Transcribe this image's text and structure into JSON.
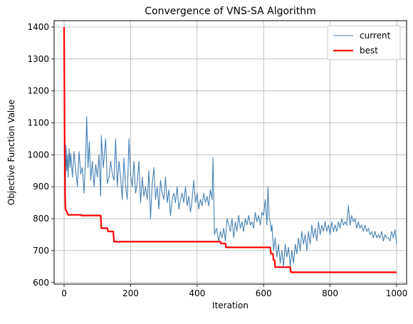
{
  "chart_data": {
    "type": "line",
    "title": "Convergence of VNS-SA Algorithm",
    "xlabel": "Iteration",
    "ylabel": "Objective Function Value",
    "xlim": [
      -30,
      1030
    ],
    "ylim": [
      595,
      1420
    ],
    "xticks": [
      0,
      200,
      400,
      600,
      800,
      1000
    ],
    "yticks": [
      600,
      700,
      800,
      900,
      1000,
      1100,
      1200,
      1300,
      1400
    ],
    "grid": true,
    "legend_position": "top-right",
    "series": [
      {
        "name": "current",
        "color": "#4682b4",
        "linewidth": 1,
        "style": "noisy",
        "points": [
          [
            0,
            1400
          ],
          [
            1,
            1250
          ],
          [
            2,
            1100
          ],
          [
            3,
            1000
          ],
          [
            4,
            920
          ],
          [
            6,
            1030
          ],
          [
            8,
            950
          ],
          [
            10,
            1000
          ],
          [
            12,
            930
          ],
          [
            15,
            1020
          ],
          [
            18,
            960
          ],
          [
            20,
            1005
          ],
          [
            25,
            930
          ],
          [
            30,
            1010
          ],
          [
            35,
            950
          ],
          [
            40,
            900
          ],
          [
            45,
            1010
          ],
          [
            50,
            940
          ],
          [
            55,
            960
          ],
          [
            60,
            880
          ],
          [
            65,
            1000
          ],
          [
            68,
            1120
          ],
          [
            72,
            960
          ],
          [
            76,
            1040
          ],
          [
            80,
            920
          ],
          [
            85,
            980
          ],
          [
            90,
            900
          ],
          [
            95,
            970
          ],
          [
            100,
            930
          ],
          [
            105,
            1000
          ],
          [
            110,
            870
          ],
          [
            112,
            1060
          ],
          [
            118,
            960
          ],
          [
            125,
            1050
          ],
          [
            130,
            910
          ],
          [
            135,
            930
          ],
          [
            140,
            980
          ],
          [
            145,
            940
          ],
          [
            150,
            920
          ],
          [
            155,
            1050
          ],
          [
            160,
            900
          ],
          [
            165,
            980
          ],
          [
            170,
            930
          ],
          [
            175,
            860
          ],
          [
            180,
            990
          ],
          [
            185,
            900
          ],
          [
            190,
            860
          ],
          [
            195,
            1050
          ],
          [
            200,
            940
          ],
          [
            205,
            900
          ],
          [
            210,
            980
          ],
          [
            215,
            880
          ],
          [
            220,
            910
          ],
          [
            225,
            980
          ],
          [
            230,
            850
          ],
          [
            235,
            930
          ],
          [
            240,
            870
          ],
          [
            245,
            900
          ],
          [
            250,
            860
          ],
          [
            255,
            950
          ],
          [
            260,
            800
          ],
          [
            265,
            910
          ],
          [
            270,
            960
          ],
          [
            275,
            860
          ],
          [
            280,
            900
          ],
          [
            285,
            830
          ],
          [
            290,
            920
          ],
          [
            295,
            880
          ],
          [
            300,
            860
          ],
          [
            305,
            930
          ],
          [
            310,
            850
          ],
          [
            315,
            890
          ],
          [
            320,
            810
          ],
          [
            325,
            860
          ],
          [
            330,
            880
          ],
          [
            335,
            850
          ],
          [
            340,
            900
          ],
          [
            345,
            830
          ],
          [
            350,
            860
          ],
          [
            355,
            880
          ],
          [
            360,
            850
          ],
          [
            365,
            900
          ],
          [
            370,
            840
          ],
          [
            375,
            870
          ],
          [
            380,
            820
          ],
          [
            385,
            860
          ],
          [
            390,
            920
          ],
          [
            395,
            850
          ],
          [
            400,
            880
          ],
          [
            405,
            830
          ],
          [
            410,
            860
          ],
          [
            415,
            840
          ],
          [
            420,
            880
          ],
          [
            425,
            850
          ],
          [
            430,
            870
          ],
          [
            435,
            840
          ],
          [
            440,
            890
          ],
          [
            445,
            860
          ],
          [
            448,
            990
          ],
          [
            452,
            750
          ],
          [
            458,
            770
          ],
          [
            465,
            730
          ],
          [
            470,
            760
          ],
          [
            475,
            740
          ],
          [
            480,
            770
          ],
          [
            485,
            730
          ],
          [
            490,
            800
          ],
          [
            495,
            780
          ],
          [
            500,
            760
          ],
          [
            505,
            800
          ],
          [
            510,
            740
          ],
          [
            515,
            790
          ],
          [
            520,
            760
          ],
          [
            525,
            810
          ],
          [
            530,
            770
          ],
          [
            535,
            790
          ],
          [
            540,
            760
          ],
          [
            545,
            800
          ],
          [
            550,
            780
          ],
          [
            555,
            810
          ],
          [
            560,
            780
          ],
          [
            565,
            790
          ],
          [
            570,
            770
          ],
          [
            575,
            820
          ],
          [
            580,
            790
          ],
          [
            585,
            810
          ],
          [
            590,
            780
          ],
          [
            595,
            820
          ],
          [
            600,
            810
          ],
          [
            605,
            860
          ],
          [
            610,
            780
          ],
          [
            613,
            900
          ],
          [
            617,
            800
          ],
          [
            620,
            790
          ],
          [
            623,
            760
          ],
          [
            625,
            780
          ],
          [
            630,
            700
          ],
          [
            635,
            740
          ],
          [
            640,
            680
          ],
          [
            645,
            720
          ],
          [
            650,
            660
          ],
          [
            655,
            700
          ],
          [
            660,
            650
          ],
          [
            665,
            720
          ],
          [
            670,
            680
          ],
          [
            675,
            710
          ],
          [
            680,
            650
          ],
          [
            685,
            700
          ],
          [
            690,
            660
          ],
          [
            695,
            720
          ],
          [
            700,
            690
          ],
          [
            705,
            740
          ],
          [
            710,
            700
          ],
          [
            715,
            760
          ],
          [
            720,
            720
          ],
          [
            725,
            750
          ],
          [
            730,
            700
          ],
          [
            735,
            760
          ],
          [
            740,
            720
          ],
          [
            745,
            780
          ],
          [
            750,
            740
          ],
          [
            755,
            770
          ],
          [
            760,
            730
          ],
          [
            765,
            790
          ],
          [
            770,
            750
          ],
          [
            775,
            780
          ],
          [
            780,
            760
          ],
          [
            785,
            790
          ],
          [
            790,
            760
          ],
          [
            795,
            780
          ],
          [
            800,
            750
          ],
          [
            805,
            790
          ],
          [
            810,
            760
          ],
          [
            815,
            780
          ],
          [
            820,
            760
          ],
          [
            825,
            790
          ],
          [
            830,
            770
          ],
          [
            835,
            800
          ],
          [
            840,
            780
          ],
          [
            845,
            790
          ],
          [
            850,
            780
          ],
          [
            855,
            840
          ],
          [
            860,
            780
          ],
          [
            865,
            810
          ],
          [
            870,
            790
          ],
          [
            875,
            800
          ],
          [
            880,
            770
          ],
          [
            885,
            790
          ],
          [
            890,
            770
          ],
          [
            895,
            780
          ],
          [
            900,
            760
          ],
          [
            905,
            780
          ],
          [
            910,
            760
          ],
          [
            915,
            770
          ],
          [
            920,
            750
          ],
          [
            925,
            760
          ],
          [
            930,
            740
          ],
          [
            935,
            760
          ],
          [
            940,
            740
          ],
          [
            945,
            750
          ],
          [
            950,
            740
          ],
          [
            955,
            760
          ],
          [
            960,
            730
          ],
          [
            965,
            750
          ],
          [
            970,
            740
          ],
          [
            975,
            740
          ],
          [
            980,
            730
          ],
          [
            985,
            760
          ],
          [
            990,
            740
          ],
          [
            995,
            765
          ],
          [
            1000,
            720
          ]
        ]
      },
      {
        "name": "best",
        "color": "#ff0000",
        "linewidth": 2,
        "style": "step",
        "points": [
          [
            0,
            1400
          ],
          [
            2,
            1000
          ],
          [
            3,
            880
          ],
          [
            4,
            830
          ],
          [
            8,
            822
          ],
          [
            12,
            812
          ],
          [
            50,
            812
          ],
          [
            52,
            810
          ],
          [
            110,
            810
          ],
          [
            112,
            770
          ],
          [
            130,
            770
          ],
          [
            132,
            760
          ],
          [
            148,
            760
          ],
          [
            150,
            728
          ],
          [
            470,
            728
          ],
          [
            472,
            722
          ],
          [
            485,
            722
          ],
          [
            487,
            710
          ],
          [
            620,
            710
          ],
          [
            622,
            690
          ],
          [
            628,
            690
          ],
          [
            630,
            670
          ],
          [
            633,
            670
          ],
          [
            635,
            648
          ],
          [
            680,
            648
          ],
          [
            682,
            632
          ],
          [
            1000,
            632
          ]
        ]
      }
    ]
  }
}
